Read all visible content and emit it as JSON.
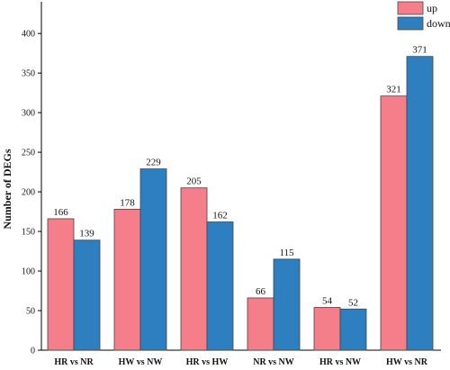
{
  "chart_data": {
    "type": "bar",
    "categories": [
      "HR vs NR",
      "HW vs NW",
      "HR vs HW",
      "NR vs NW",
      "HR vs NW",
      "HW vs NR"
    ],
    "series": [
      {
        "name": "up",
        "values": [
          166,
          178,
          205,
          66,
          54,
          321
        ],
        "color": "#f47f8b"
      },
      {
        "name": "down",
        "values": [
          139,
          229,
          162,
          115,
          52,
          371
        ],
        "color": "#2e7fc0"
      }
    ],
    "title": "",
    "xlabel": "",
    "ylabel": "Number of DEGs",
    "ylim": [
      0,
      440
    ],
    "yticks": [
      0,
      50,
      100,
      150,
      200,
      250,
      300,
      350,
      400
    ],
    "grid": false,
    "legend_position": "top-right",
    "data_labels": true
  }
}
